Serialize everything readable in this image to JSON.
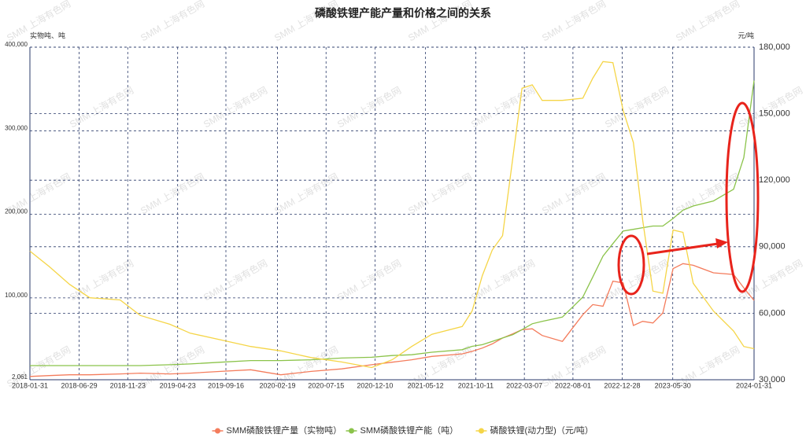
{
  "chart_data": {
    "type": "line",
    "title": "磷酸铁锂产能产量和价格之间的关系",
    "watermark": "SMM 上海有色网",
    "ylabel": "实物吨、吨",
    "y2label": "元/吨",
    "x": [
      "2018-01-31",
      "2018-03-31",
      "2018-05-31",
      "2018-07-31",
      "2018-10-31",
      "2018-12-31",
      "2019-03-31",
      "2019-05-31",
      "2019-08-31",
      "2019-11-30",
      "2020-02-29",
      "2020-05-31",
      "2020-08-31",
      "2020-11-30",
      "2021-01-31",
      "2021-03-31",
      "2021-05-31",
      "2021-08-31",
      "2021-09-30",
      "2021-10-31",
      "2021-11-30",
      "2021-12-31",
      "2022-01-31",
      "2022-02-28",
      "2022-03-31",
      "2022-04-30",
      "2022-06-30",
      "2022-08-31",
      "2022-09-30",
      "2022-10-31",
      "2022-11-30",
      "2022-12-31",
      "2023-01-31",
      "2023-02-28",
      "2023-03-31",
      "2023-04-30",
      "2023-05-31",
      "2023-06-30",
      "2023-07-31",
      "2023-09-30",
      "2023-11-30",
      "2023-12-31",
      "2024-01-31"
    ],
    "xlim": [
      "2018-01-31",
      "2024-01-31"
    ],
    "xticks": [
      "2018-01-31",
      "2018-06-29",
      "2018-11-23",
      "2019-04-23",
      "2019-09-16",
      "2020-02-19",
      "2020-07-15",
      "2020-12-10",
      "2021-05-12",
      "2021-10-11",
      "2022-03-07",
      "2022-08-01",
      "2022-12-28",
      "2023-05-30",
      "2024-01-31"
    ],
    "ylim": [
      2061,
      400000
    ],
    "yticks": [
      {
        "value": 2061,
        "label": "2,061"
      },
      {
        "value": 100000,
        "label": "100,000"
      },
      {
        "value": 200000,
        "label": "200,000"
      },
      {
        "value": 300000,
        "label": "300,000"
      },
      {
        "value": 400000,
        "label": "400,000"
      }
    ],
    "y2lim": [
      30000,
      180000
    ],
    "y2ticks": [
      {
        "value": 30000,
        "label": "30,000"
      },
      {
        "value": 60000,
        "label": "60,000"
      },
      {
        "value": 90000,
        "label": "90,000"
      },
      {
        "value": 120000,
        "label": "120,000"
      },
      {
        "value": 150000,
        "label": "150,000"
      },
      {
        "value": 180000,
        "label": "180,000"
      }
    ],
    "grid": true,
    "legend": "bottom",
    "series": [
      {
        "name": "SMM磷酸铁锂产量（实物吨）",
        "color": "#f47c5c",
        "values": [
          6000,
          7000,
          8000,
          8000,
          9000,
          10000,
          9000,
          10000,
          12000,
          14000,
          8000,
          12000,
          15000,
          20000,
          23000,
          26000,
          30000,
          33000,
          36000,
          40000,
          45000,
          52000,
          57000,
          62000,
          63000,
          55000,
          48000,
          80000,
          92000,
          90000,
          120000,
          118000,
          67000,
          72000,
          70000,
          82000,
          135000,
          141000,
          139000,
          130000,
          128000,
          112000,
          97000
        ]
      },
      {
        "name": "SMM磷酸铁锂产能（吨）",
        "color": "#8bc34a",
        "values": [
          19000,
          19000,
          19000,
          19000,
          19000,
          19000,
          20000,
          21000,
          23000,
          25000,
          25000,
          26000,
          28000,
          29000,
          31000,
          32000,
          35000,
          38000,
          42000,
          44000,
          48000,
          52000,
          56000,
          62000,
          69000,
          72000,
          77000,
          101000,
          125000,
          150000,
          165000,
          180000,
          182000,
          184000,
          186000,
          186000,
          195000,
          205000,
          210000,
          216000,
          230000,
          268000,
          360000
        ]
      },
      {
        "name": "磷酸铁锂(动力型)（元/吨）",
        "color": "#f5d547",
        "axis": "y2",
        "values": [
          88000,
          81000,
          73000,
          67000,
          66000,
          59000,
          55000,
          51000,
          48000,
          45000,
          43000,
          40000,
          38000,
          35500,
          39000,
          45000,
          50500,
          54000,
          61000,
          77000,
          88500,
          95000,
          130000,
          161500,
          163000,
          156000,
          156000,
          157000,
          166000,
          173500,
          173000,
          151500,
          137000,
          102000,
          70000,
          69000,
          97500,
          96500,
          73500,
          61000,
          52000,
          45000,
          44000
        ]
      }
    ]
  }
}
